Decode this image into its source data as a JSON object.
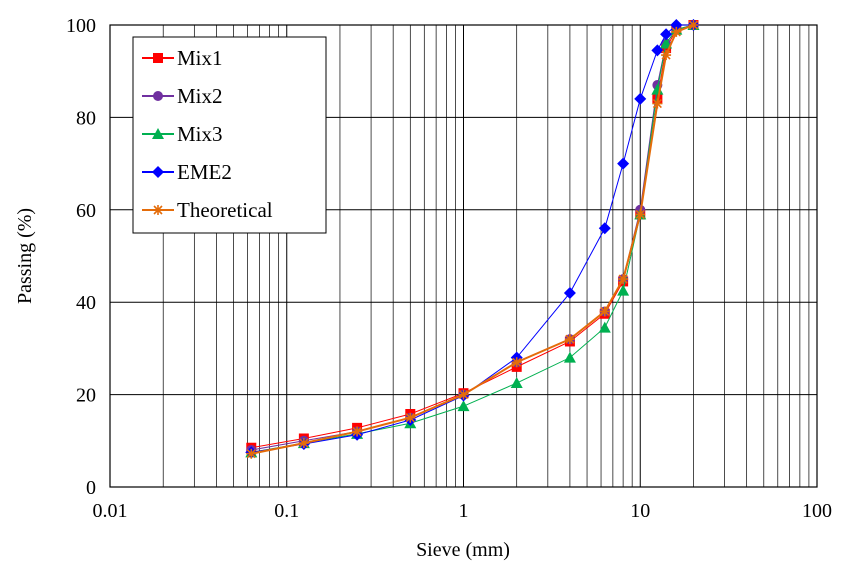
{
  "chart_data": {
    "type": "line",
    "xscale": "log",
    "xlabel": "Sieve (mm)",
    "ylabel": "Passing  (%)",
    "xlim": [
      0.01,
      100
    ],
    "ylim": [
      0,
      100
    ],
    "x_ticks": [
      "0.01",
      "0.1",
      "1",
      "10",
      "100"
    ],
    "y_ticks": [
      "0",
      "20",
      "40",
      "60",
      "80",
      "100"
    ],
    "grid": true,
    "legend_position": "top-left",
    "series": [
      {
        "name": "Mix1",
        "color": "#ff0000",
        "marker": "square",
        "x": [
          0.063,
          0.125,
          0.25,
          0.5,
          1,
          2,
          4,
          6.3,
          8,
          10,
          12.5,
          14,
          16,
          20
        ],
        "y": [
          8.5,
          10.5,
          12.8,
          15.8,
          20.3,
          26,
          31.5,
          37.5,
          44.5,
          59,
          84,
          95,
          99,
          100
        ]
      },
      {
        "name": "Mix2",
        "color": "#7030a0",
        "marker": "circle",
        "x": [
          0.063,
          0.125,
          0.25,
          0.5,
          1,
          2,
          4,
          6.3,
          8,
          10,
          12.5,
          14,
          16,
          20
        ],
        "y": [
          8,
          10,
          12,
          15,
          20,
          27,
          32,
          38,
          45,
          60,
          87,
          96,
          99,
          100
        ]
      },
      {
        "name": "Mix3",
        "color": "#00b050",
        "marker": "triangle",
        "x": [
          0.063,
          0.125,
          0.25,
          0.5,
          1,
          2,
          4,
          6.3,
          8,
          10,
          12.5,
          14,
          16,
          20
        ],
        "y": [
          7.5,
          9.5,
          11.5,
          13.8,
          17.5,
          22.5,
          28,
          34.5,
          42.5,
          59,
          86,
          96,
          99,
          100
        ]
      },
      {
        "name": "EME2",
        "color": "#0000ff",
        "marker": "diamond",
        "x": [
          0.063,
          0.125,
          0.25,
          0.5,
          1,
          2,
          4,
          6.3,
          8,
          10,
          12.5,
          14,
          16,
          20
        ],
        "y": [
          7.5,
          9.3,
          11.3,
          14.5,
          19.8,
          28,
          42,
          56,
          70,
          84,
          94.5,
          98,
          100,
          100
        ]
      },
      {
        "name": "Theoretical",
        "color": "#e46c0a",
        "marker": "star",
        "x": [
          0.063,
          0.125,
          0.25,
          0.5,
          1,
          2,
          4,
          6.3,
          8,
          10,
          12.5,
          14,
          16,
          20
        ],
        "y": [
          7.2,
          9.5,
          12,
          15,
          20,
          27,
          32,
          38,
          45,
          59,
          83,
          93.5,
          98.5,
          100
        ]
      }
    ]
  }
}
